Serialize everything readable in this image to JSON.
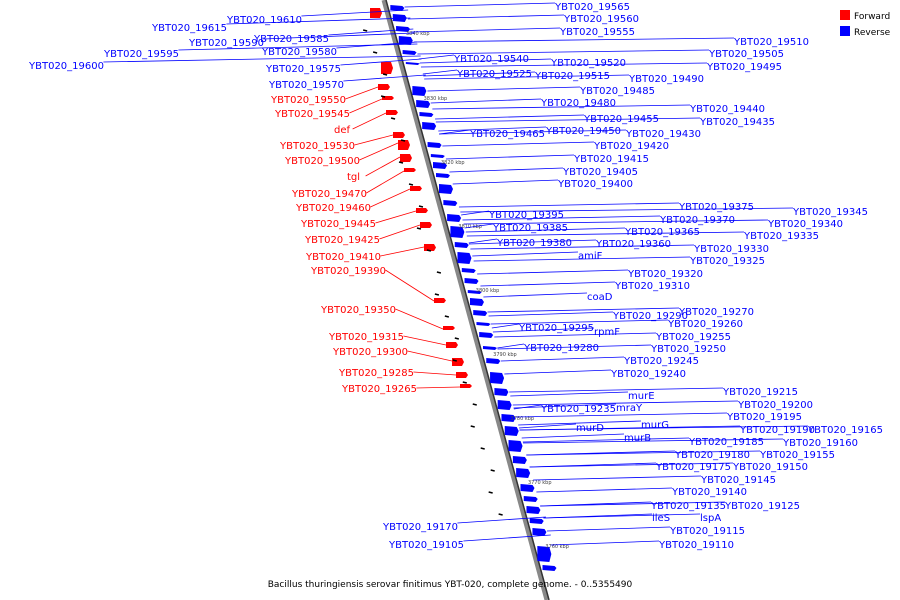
{
  "legend": {
    "forward_label": "Forward",
    "forward_color": "#ff0000",
    "reverse_label": "Reverse",
    "reverse_color": "#0000ff"
  },
  "caption": "Bacillus thuringiensis serovar finitimus YBT-020, complete genome. - 0..5355490",
  "ticks": [
    "3840 kbp",
    "3830 kbp",
    "3820 kbp",
    "3810 kbp",
    "3800 kbp",
    "3790 kbp",
    "3780 kbp",
    "3770 kbp",
    "3760 kbp"
  ],
  "reverse_labels": [
    "YBT020_19565",
    "YBT020_19560",
    "YBT020_19555",
    "YBT020_19510",
    "YBT020_19505",
    "YBT020_19540",
    "YBT020_19520",
    "YBT020_19495",
    "YBT020_19525",
    "YBT020_19515",
    "YBT020_19490",
    "YBT020_19485",
    "YBT020_19480",
    "YBT020_19440",
    "YBT020_19455",
    "YBT020_19435",
    "YBT020_19465",
    "YBT020_19450",
    "YBT020_19430",
    "YBT020_19420",
    "YBT020_19415",
    "YBT020_19405",
    "YBT020_19400",
    "YBT020_19375",
    "YBT020_19345",
    "YBT020_19395",
    "YBT020_19370",
    "YBT020_19340",
    "YBT020_19385",
    "YBT020_19365",
    "YBT020_19335",
    "YBT020_19380",
    "YBT020_19360",
    "YBT020_19330",
    "amiF",
    "YBT020_19325",
    "YBT020_19320",
    "YBT020_19310",
    "coaD",
    "YBT020_19290",
    "YBT020_19270",
    "YBT020_19260",
    "YBT020_19295",
    "rpmF",
    "YBT020_19255",
    "YBT020_19250",
    "YBT020_19280",
    "YBT020_19245",
    "YBT020_19240",
    "murE",
    "YBT020_19215",
    "YBT020_19235",
    "mraY",
    "YBT020_19200",
    "YBT020_19195",
    "murD",
    "murG",
    "YBT020_19190",
    "YBT020_19165",
    "murB",
    "YBT020_19185",
    "YBT020_19160",
    "YBT020_19180",
    "YBT020_19155",
    "YBT020_19175",
    "YBT020_19150",
    "YBT020_19145",
    "YBT020_19140",
    "YBT020_19135",
    "YBT020_19125",
    "ileS",
    "lspA",
    "YBT020_19170",
    "YBT020_19115",
    "YBT020_19105",
    "YBT020_19110",
    "YBT020_19610",
    "YBT020_19615",
    "YBT020_19590",
    "YBT020_19585",
    "YBT020_19595",
    "YBT020_19580",
    "YBT020_19600",
    "YBT020_19575",
    "YBT020_19570"
  ],
  "forward_labels": [
    "YBT020_19550",
    "YBT020_19545",
    "def",
    "YBT020_19530",
    "YBT020_19500",
    "tgl",
    "YBT020_19470",
    "YBT020_19460",
    "YBT020_19445",
    "YBT020_19425",
    "YBT020_19410",
    "YBT020_19390",
    "YBT020_19350",
    "YBT020_19315",
    "YBT020_19300",
    "YBT020_19285",
    "YBT020_19265"
  ]
}
